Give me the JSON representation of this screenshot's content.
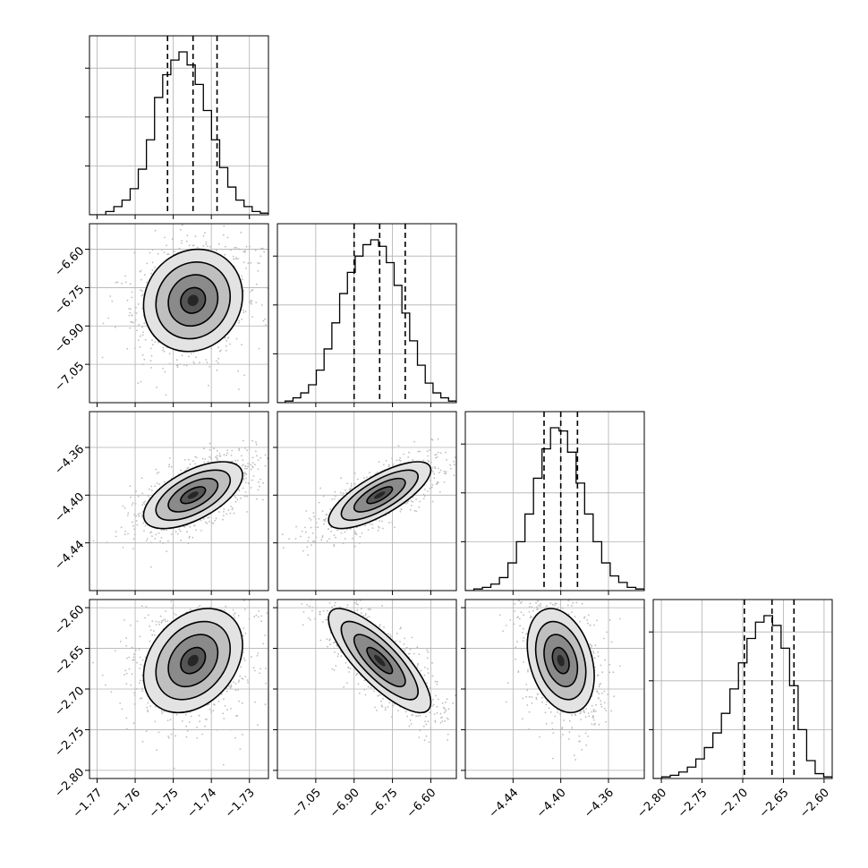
{
  "chart_data": {
    "type": "corner",
    "title": "",
    "grid": true,
    "quantiles": [
      0.16,
      0.5,
      0.84
    ],
    "parameters": [
      {
        "label": "",
        "range": [
          -1.772,
          -1.725
        ],
        "ticks": [
          -1.77,
          -1.76,
          -1.75,
          -1.74,
          -1.73
        ],
        "tick_labels": [
          "-1.77",
          "-1.76",
          "-1.75",
          "-1.74",
          "-1.73"
        ],
        "quantile_values": [
          -1.7515,
          -1.7448,
          -1.7385
        ],
        "mean": -1.7448,
        "sd": 0.0065,
        "histogram": [
          0,
          0,
          2,
          5,
          9,
          16,
          28,
          46,
          72,
          86,
          95,
          100,
          92,
          80,
          64,
          46,
          29,
          17,
          9,
          5,
          2,
          1
        ]
      },
      {
        "label": "",
        "range": [
          -7.2,
          -6.5
        ],
        "ticks": [
          -7.05,
          -6.9,
          -6.75,
          -6.6
        ],
        "tick_labels": [
          "-7.05",
          "-6.90",
          "-6.75",
          "-6.60"
        ],
        "quantile_values": [
          -6.9,
          -6.8,
          -6.7
        ],
        "mean": -6.8,
        "sd": 0.1,
        "histogram": [
          0,
          1,
          3,
          6,
          11,
          20,
          33,
          49,
          67,
          80,
          90,
          97,
          100,
          96,
          86,
          72,
          55,
          38,
          23,
          12,
          6,
          3,
          1
        ]
      },
      {
        "label": "",
        "range": [
          -4.48,
          -4.33
        ],
        "ticks": [
          -4.44,
          -4.4,
          -4.36
        ],
        "tick_labels": [
          "-4.44",
          "-4.40",
          "-4.36"
        ],
        "quantile_values": [
          -4.414,
          -4.4,
          -4.386
        ],
        "mean": -4.4,
        "sd": 0.014,
        "histogram": [
          0,
          1,
          2,
          4,
          8,
          17,
          30,
          47,
          69,
          87,
          100,
          98,
          85,
          66,
          47,
          30,
          17,
          9,
          5,
          2,
          1
        ]
      },
      {
        "label": "",
        "range": [
          -2.81,
          -2.59
        ],
        "ticks": [
          -2.8,
          -2.75,
          -2.7,
          -2.65,
          -2.6
        ],
        "tick_labels": [
          "-2.80",
          "-2.75",
          "-2.70",
          "-2.65",
          "-2.60"
        ],
        "quantile_values": [
          -2.698,
          -2.664,
          -2.637
        ],
        "mean": -2.665,
        "sd": 0.032,
        "histogram": [
          0,
          1,
          2,
          4,
          7,
          12,
          19,
          28,
          40,
          55,
          71,
          86,
          96,
          100,
          94,
          80,
          57,
          30,
          11,
          3,
          1
        ]
      }
    ],
    "correlations": [
      [
        1.0,
        0.1,
        0.6,
        0.3
      ],
      [
        0.1,
        1.0,
        0.75,
        -0.8
      ],
      [
        0.6,
        0.75,
        1.0,
        -0.3
      ],
      [
        0.3,
        -0.8,
        -0.3,
        1.0
      ]
    ]
  },
  "colors": {
    "line": "#000000",
    "grid": "#b0b0b0",
    "points": "#bdbdbd",
    "density_light": "#d9d9d9",
    "density_dark": "#1a1a1a"
  }
}
